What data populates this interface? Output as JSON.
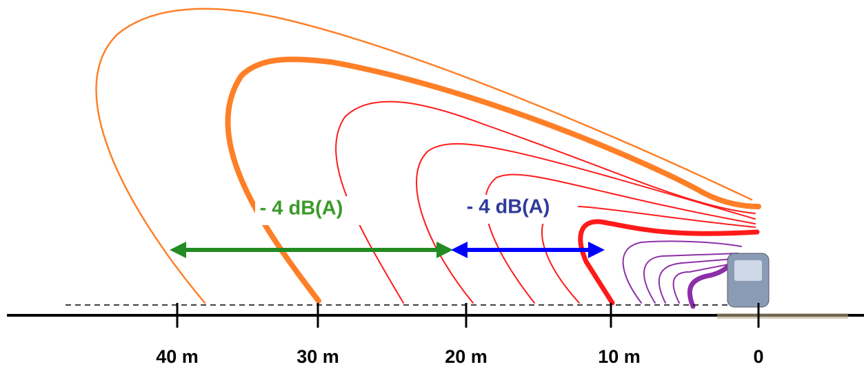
{
  "annotations": [
    {
      "text": "- 4 dB(A)"
    },
    {
      "text": "- 4 dB(A)"
    }
  ],
  "axis": {
    "ticks": [
      "40 m",
      "30 m",
      "20 m",
      "10 m",
      "0"
    ]
  }
}
